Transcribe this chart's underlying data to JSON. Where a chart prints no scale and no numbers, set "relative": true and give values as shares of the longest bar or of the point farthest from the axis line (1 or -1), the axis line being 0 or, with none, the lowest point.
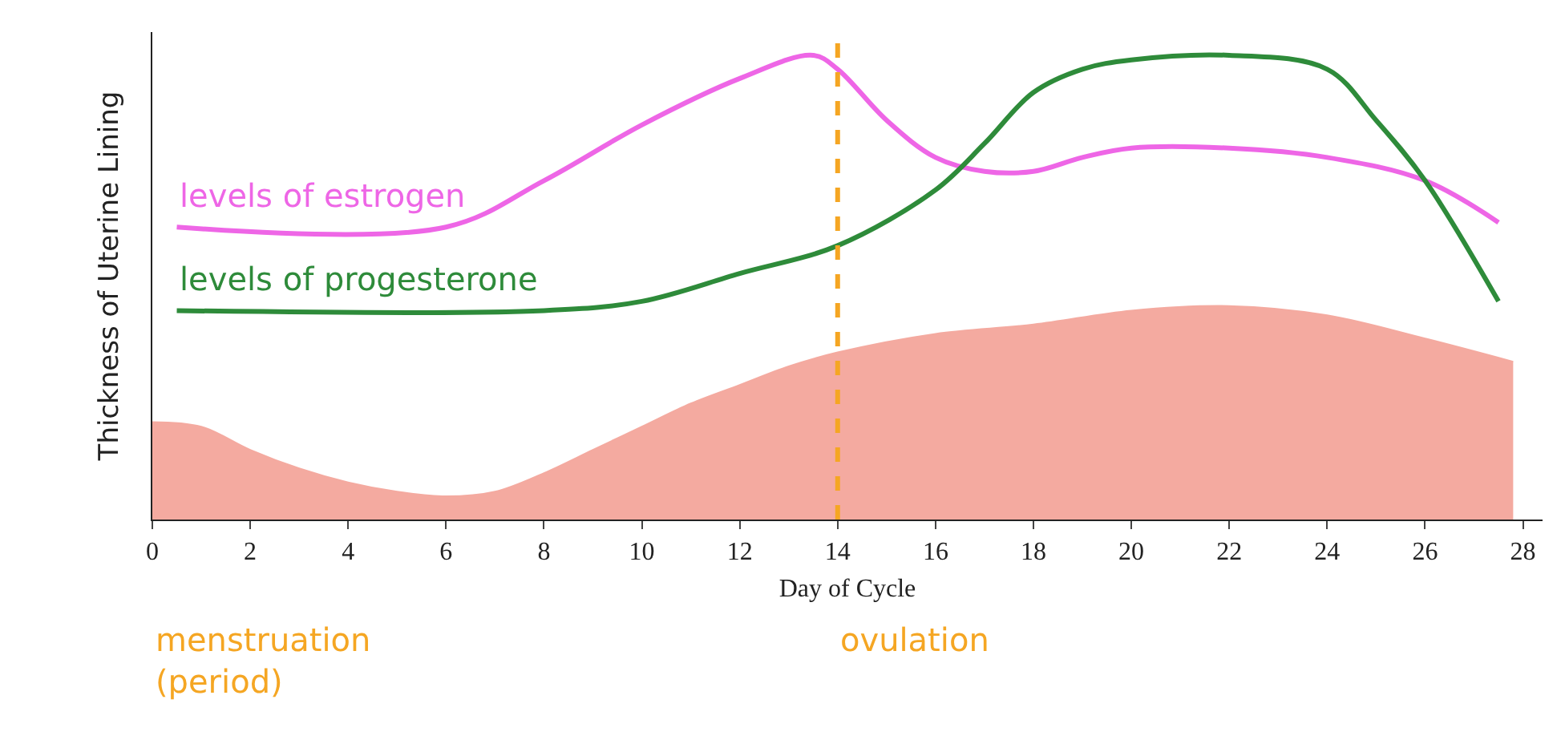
{
  "chart_data": {
    "type": "line",
    "relative": true,
    "xlabel": "Day of Cycle",
    "ylabel": "Thickness of Uterine Lining",
    "xlim": [
      0,
      28.4
    ],
    "xticks": [
      0,
      2,
      4,
      6,
      8,
      10,
      12,
      14,
      16,
      18,
      20,
      22,
      24,
      26,
      28
    ],
    "legend": false,
    "marker": "none",
    "line_style": "solid",
    "series": [
      {
        "type": "area",
        "color": "#f4aaa0",
        "x": [
          0,
          1,
          2,
          3,
          4,
          5,
          6,
          7,
          8,
          9,
          10,
          11,
          12,
          13,
          14,
          16,
          18,
          20,
          22,
          24,
          26,
          27.8
        ],
        "values": [
          0.21,
          0.2,
          0.15,
          0.11,
          0.08,
          0.06,
          0.05,
          0.06,
          0.1,
          0.15,
          0.2,
          0.25,
          0.29,
          0.33,
          0.36,
          0.4,
          0.42,
          0.45,
          0.46,
          0.44,
          0.39,
          0.34
        ]
      },
      {
        "name": "levels of estrogen",
        "color": "#ee66e6",
        "x": [
          0.5,
          6,
          8,
          10,
          12,
          13.5,
          14,
          15,
          16,
          17,
          18,
          19,
          20,
          22,
          24,
          26,
          27.5
        ],
        "values": [
          0.63,
          0.63,
          0.73,
          0.85,
          0.95,
          1.0,
          0.97,
          0.86,
          0.78,
          0.75,
          0.75,
          0.78,
          0.8,
          0.8,
          0.78,
          0.73,
          0.64
        ]
      },
      {
        "name": "levels of progesterone",
        "color": "#2e8b3a",
        "x": [
          0.5,
          8,
          10,
          12,
          14,
          16,
          17,
          18,
          19,
          20,
          22,
          24,
          25,
          26,
          27.5
        ],
        "values": [
          0.45,
          0.45,
          0.47,
          0.53,
          0.59,
          0.71,
          0.81,
          0.92,
          0.97,
          0.99,
          1.0,
          0.97,
          0.86,
          0.73,
          0.47
        ]
      }
    ],
    "ref_lines": [
      {
        "axis": "x",
        "value": 14,
        "color": "#f5a623",
        "line_style": "dashed"
      }
    ],
    "annotations": [
      "menstruation\n(period)",
      "ovulation"
    ]
  }
}
